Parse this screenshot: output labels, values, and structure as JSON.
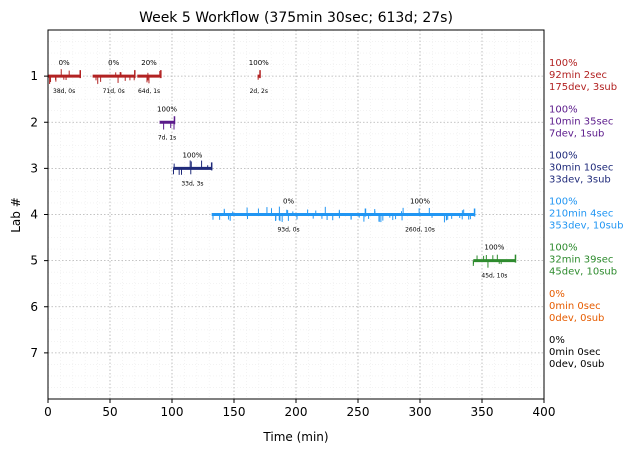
{
  "chart_data": {
    "type": "timeline",
    "title": "Week 5 Workflow (375min 30sec; 613d; 27s)",
    "xlabel": "Time (min)",
    "ylabel": "Lab #",
    "xlim": [
      0,
      400
    ],
    "ylim": [
      8,
      0
    ],
    "x_ticks": [
      0,
      50,
      100,
      150,
      200,
      250,
      300,
      350,
      400
    ],
    "y_ticks": [
      1,
      2,
      3,
      4,
      5,
      6,
      7
    ],
    "grid": true,
    "labs": [
      {
        "lab": 1,
        "color": "#b22222",
        "segments": [
          {
            "start": 0,
            "end": 26,
            "pct": "0%",
            "info": "38d, 0s"
          },
          {
            "start": 36,
            "end": 70,
            "pct": "0%",
            "info": "71d, 0s"
          },
          {
            "start": 72,
            "end": 91,
            "pct": "20%",
            "info": "64d, 1s"
          },
          {
            "start": 169,
            "end": 171,
            "pct": "100%",
            "info": "2d, 2s"
          }
        ],
        "summary": [
          "100%",
          "92min 2sec",
          "175dev, 3sub"
        ]
      },
      {
        "lab": 2,
        "color": "#5b1a8b",
        "segments": [
          {
            "start": 90,
            "end": 102,
            "pct": "100%",
            "info": "7d, 1s"
          }
        ],
        "summary": [
          "100%",
          "10min 35sec",
          "7dev, 1sub"
        ]
      },
      {
        "lab": 3,
        "color": "#1f2a7a",
        "segments": [
          {
            "start": 101,
            "end": 132,
            "pct": "100%",
            "info": "33d, 3s"
          }
        ],
        "summary": [
          "100%",
          "30min 10sec",
          "33dev, 3sub"
        ]
      },
      {
        "lab": 4,
        "color": "#2196f3",
        "segments": [
          {
            "start": 132,
            "end": 256,
            "pct": "0%",
            "info": "93d, 0s"
          },
          {
            "start": 256,
            "end": 344,
            "pct": "100%",
            "info": "260d, 10s"
          }
        ],
        "summary": [
          "100%",
          "210min 4sec",
          "353dev, 10sub"
        ]
      },
      {
        "lab": 5,
        "color": "#2e8b2e",
        "segments": [
          {
            "start": 343,
            "end": 377,
            "pct": "100%",
            "info": "45d, 10s"
          }
        ],
        "summary": [
          "100%",
          "32min 39sec",
          "45dev, 10sub"
        ]
      },
      {
        "lab": 6,
        "color": "#e65c00",
        "segments": [],
        "summary": [
          "0%",
          "0min 0sec",
          "0dev, 0sub"
        ]
      },
      {
        "lab": 7,
        "color": "#000000",
        "segments": [],
        "summary": [
          "0%",
          "0min 0sec",
          "0dev, 0sub"
        ]
      }
    ]
  }
}
